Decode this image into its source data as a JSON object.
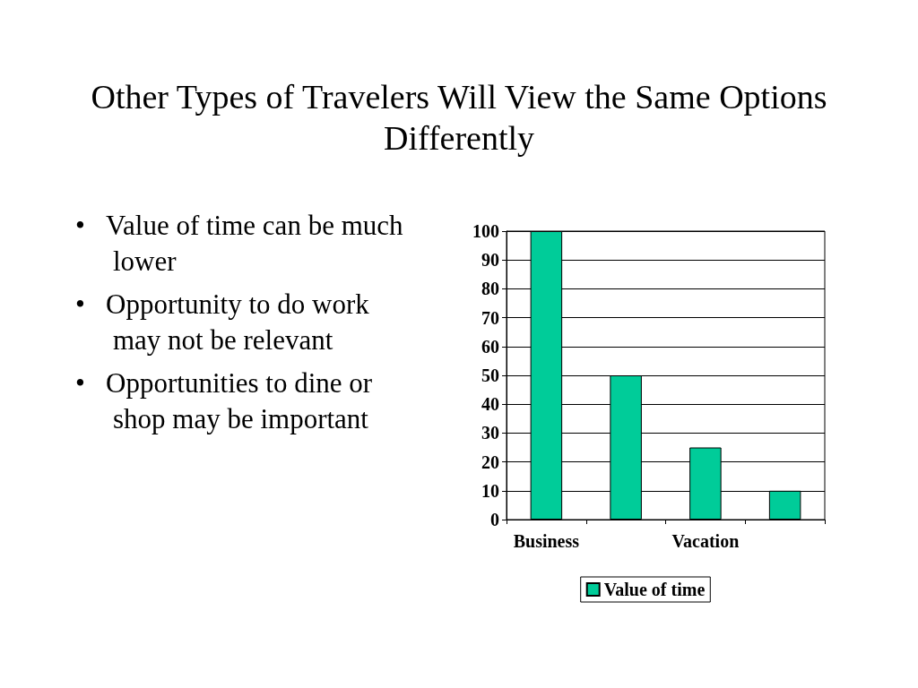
{
  "chart_data": {
    "type": "bar",
    "title": "Other Types of Travelers Will View the Same Options Differently",
    "annotations": [
      "• Value of time can be much lower",
      "• Opportunity to do work may not be relevant",
      "• Opportunities to dine or shop may be important"
    ],
    "categories": [
      "Business",
      null,
      "Vacation",
      null
    ],
    "series": [
      {
        "name": "Value of time",
        "color": "#00cc99",
        "values": [
          100,
          50,
          25,
          10
        ]
      }
    ],
    "ylim": [
      0,
      100
    ],
    "yticks": [
      0,
      10,
      20,
      30,
      40,
      50,
      60,
      70,
      80,
      90,
      100
    ],
    "grid": "y",
    "legend": "bottom"
  }
}
